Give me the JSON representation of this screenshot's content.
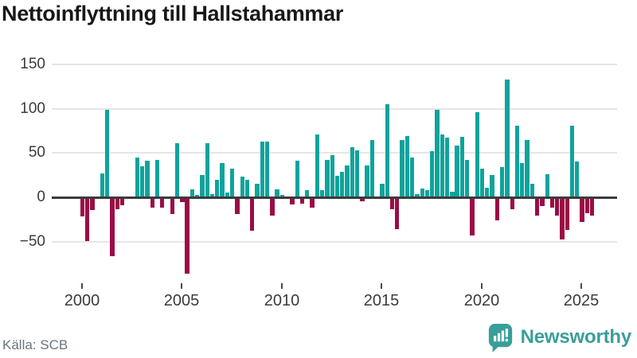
{
  "title": "Nettoinflyttning till Hallstahammar",
  "source": "Källa: SCB",
  "logo": {
    "text": "Newsworthy",
    "icon": "newsworthy-speech-bubble-bar-chart",
    "color": "#3a9e99"
  },
  "colors": {
    "positive_bar": "#0fa39c",
    "negative_bar": "#9b0c45",
    "gridline": "#e8e5e5",
    "zero_line": "#3b3b3b",
    "axis_text": "#3b3b3b",
    "title_text": "#181818",
    "source_text": "#6b7480"
  },
  "chart_data": {
    "type": "bar",
    "title": "Nettoinflyttning till Hallstahammar",
    "xlabel": "",
    "ylabel": "",
    "x_start": "2000 Q1",
    "x_end": "2025 Q3",
    "x_frequency": "quarterly",
    "x_tick_years": [
      2000,
      2005,
      2010,
      2015,
      2020,
      2025
    ],
    "y_tick_values": [
      150,
      100,
      50,
      0,
      -50
    ],
    "y_tick_labels": [
      "150",
      "100",
      "50",
      "0",
      "−50"
    ],
    "ylim": [
      -90,
      160
    ],
    "grid": "horizontal",
    "legend": "none",
    "series": [
      {
        "name": "Nettoinflyttning",
        "values": [
          -20,
          -48,
          -13,
          0,
          27,
          99,
          -65,
          -12,
          -7,
          0,
          0,
          45,
          35,
          41,
          -10,
          42,
          -10,
          0,
          -17,
          61,
          -4,
          -84,
          9,
          3,
          25,
          61,
          4,
          20,
          39,
          5,
          32,
          -17,
          23,
          20,
          -36,
          15,
          63,
          63,
          -19,
          9,
          3,
          0,
          -6,
          41,
          -5,
          8,
          -10,
          71,
          8,
          42,
          48,
          24,
          29,
          36,
          57,
          53,
          -3,
          36,
          65,
          0,
          15,
          105,
          -12,
          -34,
          65,
          69,
          45,
          4,
          10,
          8,
          52,
          99,
          71,
          67,
          6,
          58,
          68,
          42,
          -41,
          96,
          32,
          11,
          25,
          -24,
          34,
          133,
          -12,
          81,
          39,
          65,
          15,
          -19,
          -8,
          26,
          -10,
          -19,
          -46,
          -35,
          81,
          40,
          -26,
          -16,
          -19
        ]
      }
    ]
  }
}
